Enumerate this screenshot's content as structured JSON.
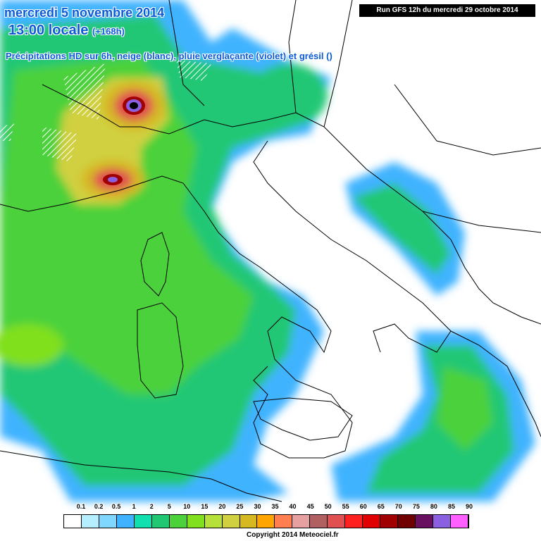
{
  "header": {
    "date_line": "mercredi 5 novembre 2014",
    "time_main": "13:00 locale",
    "time_offset": "(+168h)",
    "subtitle": "Précipitations HD sur 6h, neige (blanc), pluie verglaçante (violet) et grésil ()",
    "run_info": "Run GFS 12h du mercredi 29 octobre 2014"
  },
  "legend": {
    "labels": [
      "0.1",
      "0.2",
      "0.5",
      "1",
      "2",
      "5",
      "10",
      "15",
      "20",
      "25",
      "30",
      "35",
      "40",
      "45",
      "50",
      "55",
      "60",
      "65",
      "70",
      "75",
      "80",
      "85",
      "90"
    ],
    "colors": [
      "#ffffff",
      "#b4eeff",
      "#7fd6ff",
      "#3fb3ff",
      "#10e0b0",
      "#22c774",
      "#4bd13a",
      "#80e01d",
      "#b8e03a",
      "#d0d040",
      "#d6b820",
      "#ffa500",
      "#ff7f50",
      "#e6a0a0",
      "#b06060",
      "#e05050",
      "#ff2020",
      "#e00000",
      "#a00000",
      "#700000",
      "#6a1060",
      "#8a60e0",
      "#ff60ff"
    ]
  },
  "copyright": "Copyright 2014 Meteociel.fr"
}
